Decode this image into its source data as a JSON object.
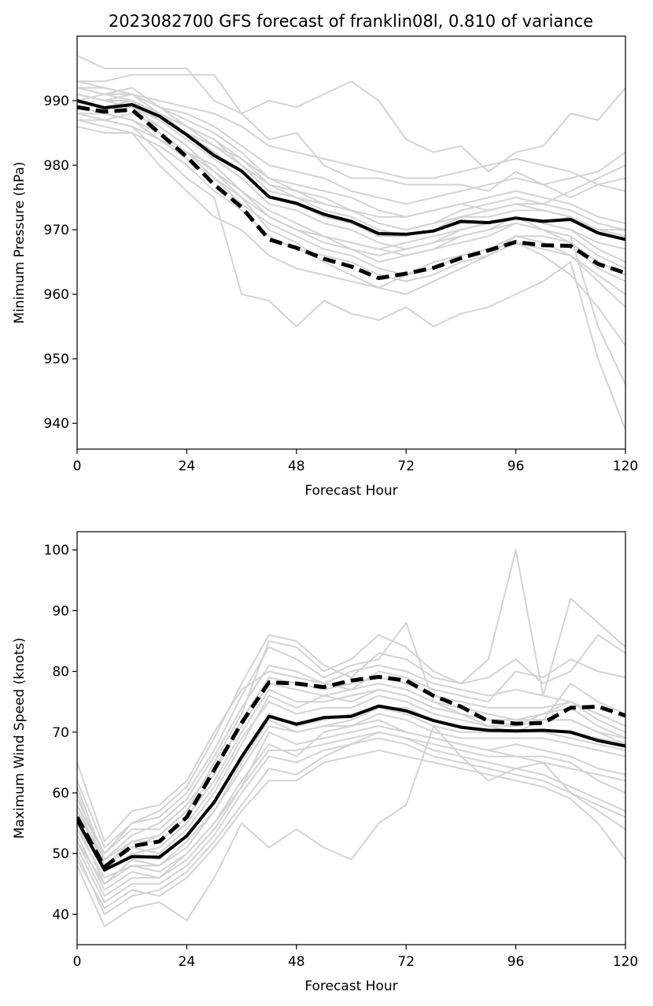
{
  "title": "2023082700 GFS forecast of franklin08l, 0.810 of variance",
  "colors": {
    "ensemble": "#d3d3d3",
    "mean": "#000000",
    "dashed": "#000000"
  },
  "chart_data": [
    {
      "type": "line",
      "xlabel": "Forecast Hour",
      "ylabel": "Minimum Pressure (hPa)",
      "xlim": [
        0,
        120
      ],
      "ylim": [
        936,
        1000
      ],
      "xticks": [
        0,
        24,
        48,
        72,
        96,
        120
      ],
      "yticks": [
        940,
        950,
        960,
        970,
        980,
        990
      ],
      "grid": false,
      "x": [
        0,
        6,
        12,
        18,
        24,
        30,
        36,
        42,
        48,
        54,
        60,
        66,
        72,
        78,
        84,
        90,
        96,
        102,
        108,
        114,
        120
      ],
      "solid": [
        990,
        988.9,
        989.4,
        987.6,
        984.7,
        981.5,
        979.1,
        975.1,
        974.1,
        972.4,
        971.3,
        969.4,
        969.3,
        969.8,
        971.3,
        971.1,
        971.8,
        971.3,
        971.6,
        969.5,
        968.5
      ],
      "dashed": [
        989,
        988.3,
        988.6,
        985.0,
        981.3,
        977.0,
        973.5,
        968.5,
        967.2,
        965.5,
        964.3,
        962.5,
        963.2,
        964.1,
        965.6,
        966.8,
        968.1,
        967.6,
        967.5,
        964.7,
        963.3
      ],
      "members": [
        [
          990,
          989,
          990,
          988,
          985,
          982,
          979,
          975,
          974,
          972,
          971,
          969,
          969,
          970,
          971,
          971,
          972,
          971,
          972,
          970,
          969
        ],
        [
          997,
          995,
          995,
          995,
          995,
          990,
          988,
          984,
          985,
          980,
          978,
          978,
          977,
          977,
          977,
          976,
          979,
          977,
          975,
          977,
          978
        ],
        [
          993,
          993,
          994,
          994,
          994,
          994,
          988,
          990,
          989,
          991,
          993,
          990,
          984,
          982,
          983,
          979,
          982,
          983,
          988,
          987,
          992
        ],
        [
          989,
          988,
          987,
          985,
          982,
          978,
          975,
          970,
          968,
          965,
          963,
          961,
          960,
          962,
          964,
          966,
          969,
          969,
          968,
          964,
          962
        ],
        [
          988,
          987,
          986,
          982,
          978,
          975,
          960,
          959,
          955,
          959,
          957,
          956,
          958,
          955,
          957,
          958,
          960,
          962,
          965,
          950,
          939
        ],
        [
          991,
          990,
          989,
          986,
          983,
          979,
          975,
          972,
          970,
          969,
          967,
          965,
          966,
          967,
          969,
          970,
          972,
          970,
          969,
          955,
          946
        ],
        [
          992,
          991,
          992,
          989,
          987,
          985,
          982,
          978,
          976,
          975,
          973,
          972,
          972,
          973,
          974,
          975,
          976,
          975,
          974,
          972,
          971
        ],
        [
          987,
          986,
          985,
          980,
          976,
          972,
          970,
          966,
          964,
          963,
          962,
          961,
          963,
          965,
          966,
          967,
          968,
          966,
          963,
          958,
          952
        ],
        [
          990,
          991,
          990,
          987,
          985,
          983,
          980,
          977,
          975,
          974,
          973,
          971,
          970,
          971,
          973,
          974,
          975,
          974,
          976,
          978,
          980
        ],
        [
          993,
          992,
          991,
          989,
          988,
          986,
          983,
          980,
          979,
          978,
          976,
          975,
          974,
          975,
          976,
          977,
          978,
          977,
          978,
          979,
          982
        ],
        [
          988,
          987,
          988,
          986,
          983,
          979,
          976,
          973,
          971,
          969,
          968,
          967,
          968,
          969,
          970,
          971,
          972,
          971,
          970,
          967,
          965
        ],
        [
          991,
          990,
          990,
          988,
          986,
          984,
          981,
          978,
          977,
          976,
          975,
          973,
          972,
          973,
          974,
          973,
          974,
          974,
          973,
          971,
          970
        ],
        [
          986,
          985,
          985,
          983,
          980,
          976,
          973,
          969,
          967,
          966,
          965,
          963,
          962,
          963,
          965,
          966,
          968,
          967,
          966,
          962,
          958
        ],
        [
          992,
          992,
          991,
          990,
          989,
          988,
          986,
          983,
          982,
          981,
          980,
          979,
          978,
          978,
          979,
          980,
          981,
          980,
          979,
          977,
          976
        ],
        [
          989,
          988,
          987,
          984,
          981,
          978,
          974,
          971,
          969,
          967,
          966,
          964,
          963,
          964,
          966,
          967,
          969,
          968,
          966,
          963,
          960
        ],
        [
          990,
          989,
          989,
          987,
          984,
          981,
          978,
          974,
          973,
          971,
          970,
          968,
          967,
          968,
          970,
          971,
          972,
          971,
          970,
          968,
          967
        ],
        [
          987,
          987,
          986,
          984,
          982,
          980,
          976,
          972,
          970,
          968,
          967,
          966,
          967,
          968,
          969,
          970,
          971,
          970,
          969,
          966,
          964
        ],
        [
          992,
          991,
          991,
          989,
          986,
          983,
          981,
          977,
          976,
          974,
          973,
          971,
          970,
          971,
          972,
          973,
          974,
          973,
          972,
          970,
          969
        ],
        [
          988,
          988,
          987,
          985,
          982,
          979,
          976,
          972,
          970,
          969,
          968,
          967,
          966,
          967,
          968,
          969,
          971,
          970,
          968,
          965,
          963
        ],
        [
          991,
          990,
          991,
          988,
          986,
          984,
          980,
          976,
          975,
          973,
          972,
          970,
          969,
          970,
          972,
          972,
          973,
          973,
          972,
          970,
          970
        ]
      ]
    },
    {
      "type": "line",
      "xlabel": "Forecast Hour",
      "ylabel": "Maximum Wind Speed (knots)",
      "xlim": [
        0,
        120
      ],
      "ylim": [
        35,
        103
      ],
      "xticks": [
        0,
        24,
        48,
        72,
        96,
        120
      ],
      "yticks": [
        40,
        50,
        60,
        70,
        80,
        90,
        100
      ],
      "grid": false,
      "x": [
        0,
        6,
        12,
        18,
        24,
        30,
        36,
        42,
        48,
        54,
        60,
        66,
        72,
        78,
        84,
        90,
        96,
        102,
        108,
        114,
        120
      ],
      "solid": [
        55.5,
        47.3,
        49.5,
        49.4,
        52.9,
        58.5,
        65.9,
        72.6,
        71.3,
        72.4,
        72.6,
        74.3,
        73.5,
        71.9,
        70.8,
        70.3,
        70.2,
        70.3,
        70.0,
        68.6,
        67.7
      ],
      "dashed": [
        56.0,
        47.8,
        51.2,
        52.0,
        56.0,
        63.8,
        71.5,
        78.2,
        78.0,
        77.4,
        78.5,
        79.1,
        78.5,
        76.0,
        74.2,
        71.8,
        71.4,
        71.5,
        74.0,
        74.2,
        72.7
      ],
      "members": [
        [
          55,
          47,
          50,
          49,
          53,
          58,
          66,
          73,
          71,
          72,
          73,
          74,
          74,
          72,
          71,
          70,
          70,
          70,
          70,
          69,
          68
        ],
        [
          60,
          48,
          52,
          53,
          57,
          65,
          73,
          85,
          84,
          80,
          82,
          86,
          84,
          80,
          78,
          82,
          100,
          76,
          92,
          88,
          84
        ],
        [
          52,
          45,
          48,
          47,
          50,
          55,
          62,
          68,
          66,
          70,
          71,
          72,
          70,
          69,
          68,
          67,
          66,
          65,
          64,
          63,
          62
        ],
        [
          58,
          50,
          55,
          56,
          60,
          67,
          76,
          84,
          82,
          79,
          81,
          82,
          88,
          75,
          73,
          71,
          70,
          72,
          78,
          75,
          73
        ],
        [
          50,
          40,
          43,
          44,
          47,
          52,
          58,
          64,
          63,
          66,
          68,
          70,
          69,
          67,
          66,
          65,
          64,
          63,
          61,
          59,
          57
        ],
        [
          65,
          52,
          57,
          58,
          62,
          70,
          77,
          80,
          79,
          78,
          77,
          80,
          79,
          77,
          76,
          75,
          80,
          79,
          82,
          80,
          79
        ],
        [
          48,
          38,
          41,
          42,
          39,
          46,
          55,
          51,
          54,
          51,
          49,
          55,
          58,
          71,
          66,
          62,
          64,
          65,
          60,
          58,
          56
        ],
        [
          57,
          48,
          51,
          50,
          54,
          60,
          68,
          76,
          74,
          76,
          75,
          77,
          76,
          74,
          73,
          72,
          71,
          73,
          75,
          73,
          71
        ],
        [
          53,
          44,
          47,
          46,
          49,
          54,
          61,
          70,
          68,
          69,
          70,
          71,
          70,
          69,
          68,
          67,
          68,
          67,
          66,
          64,
          63
        ],
        [
          61,
          49,
          53,
          55,
          59,
          66,
          74,
          81,
          80,
          78,
          80,
          81,
          80,
          78,
          77,
          76,
          77,
          76,
          75,
          72,
          70
        ],
        [
          51,
          42,
          45,
          45,
          48,
          53,
          60,
          66,
          65,
          67,
          68,
          69,
          68,
          66,
          65,
          64,
          63,
          62,
          60,
          57,
          54
        ],
        [
          59,
          50,
          54,
          54,
          58,
          64,
          71,
          78,
          77,
          76,
          77,
          78,
          77,
          75,
          74,
          73,
          72,
          73,
          74,
          71,
          69
        ],
        [
          54,
          46,
          48,
          48,
          51,
          57,
          64,
          71,
          70,
          71,
          71,
          73,
          72,
          70,
          69,
          69,
          69,
          69,
          68,
          67,
          66
        ],
        [
          56,
          47,
          50,
          51,
          55,
          61,
          69,
          75,
          73,
          74,
          74,
          76,
          75,
          73,
          72,
          71,
          71,
          72,
          72,
          70,
          69
        ],
        [
          49,
          41,
          44,
          43,
          46,
          51,
          57,
          62,
          62,
          65,
          66,
          67,
          66,
          65,
          64,
          63,
          62,
          61,
          59,
          55,
          49
        ],
        [
          62,
          51,
          55,
          57,
          61,
          69,
          78,
          86,
          85,
          81,
          79,
          83,
          82,
          79,
          78,
          79,
          82,
          78,
          80,
          86,
          83
        ],
        [
          55,
          45,
          49,
          48,
          52,
          57,
          65,
          72,
          70,
          71,
          72,
          74,
          73,
          71,
          70,
          70,
          70,
          70,
          69,
          68,
          67
        ],
        [
          57,
          49,
          52,
          52,
          56,
          62,
          70,
          77,
          75,
          75,
          76,
          77,
          76,
          74,
          73,
          72,
          72,
          72,
          72,
          70,
          68
        ],
        [
          52,
          43,
          46,
          46,
          50,
          55,
          61,
          67,
          67,
          68,
          69,
          70,
          69,
          68,
          67,
          66,
          66,
          66,
          65,
          62,
          60
        ],
        [
          58,
          48,
          51,
          53,
          57,
          63,
          72,
          79,
          78,
          77,
          78,
          79,
          78,
          76,
          75,
          74,
          74,
          74,
          75,
          73,
          71
        ]
      ]
    }
  ]
}
